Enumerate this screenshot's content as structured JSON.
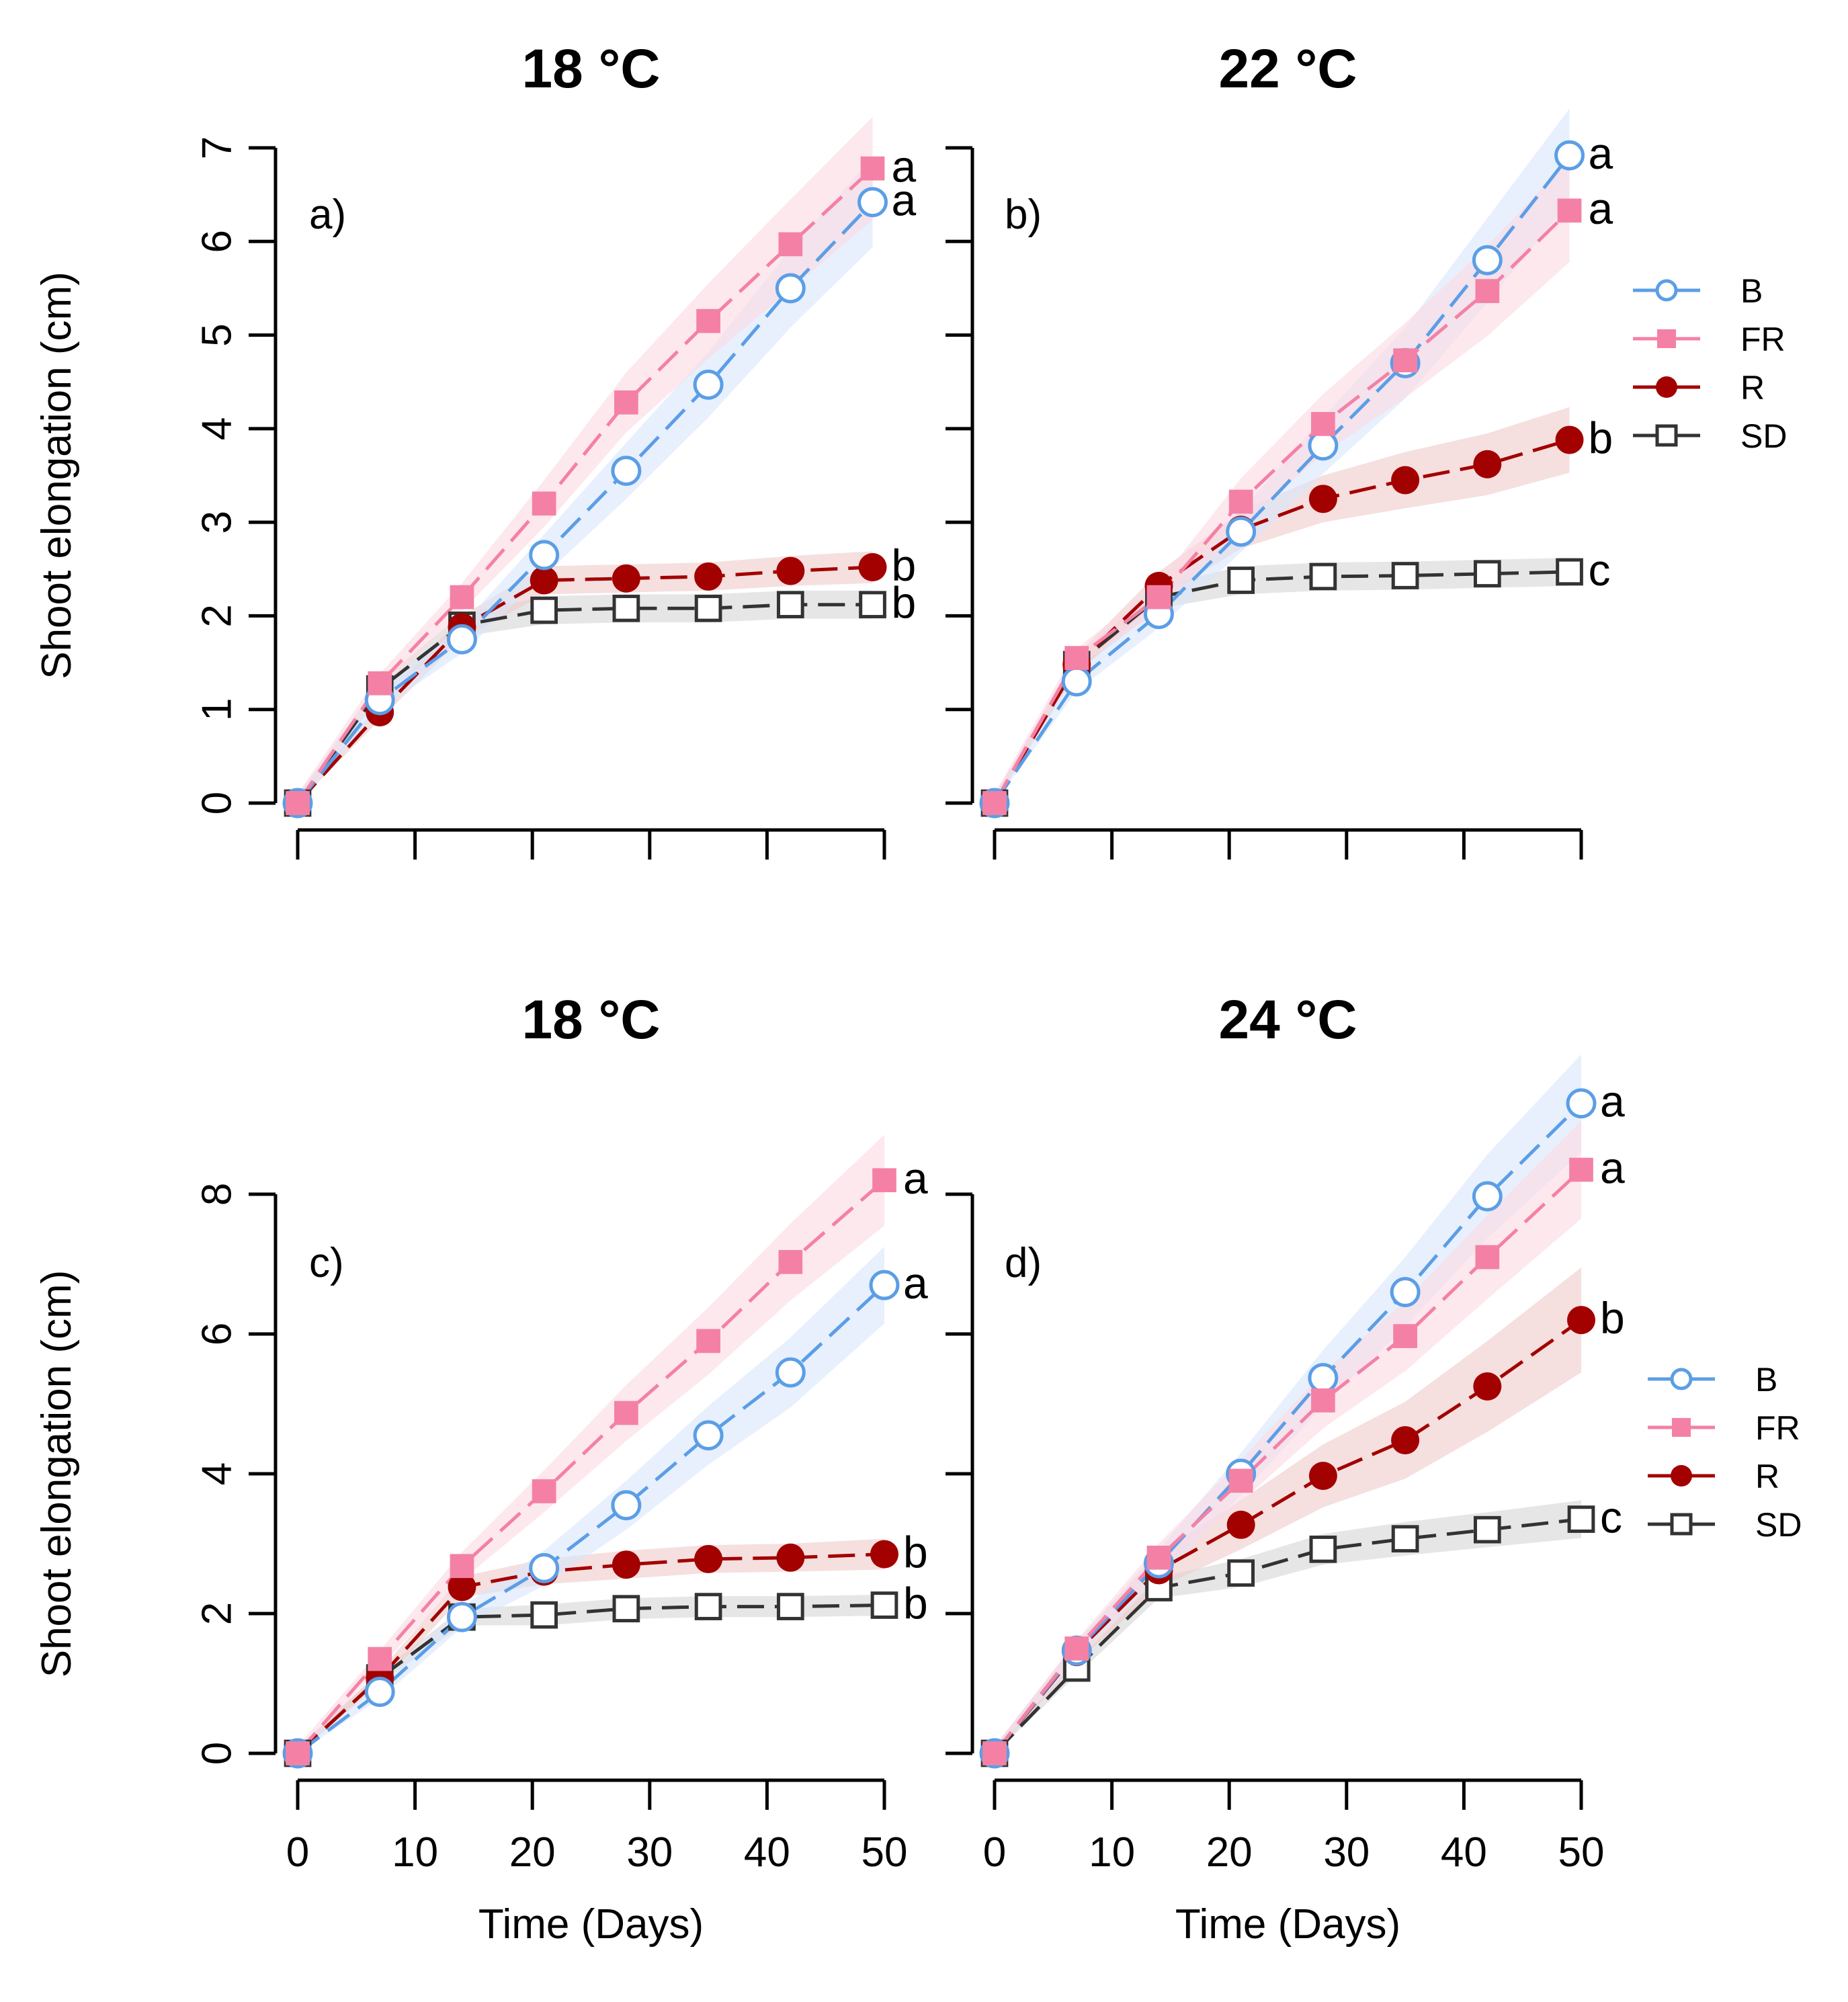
{
  "colors": {
    "B": "#5b9ee6",
    "FR": "#f481a5",
    "R": "#a30000",
    "SD": "#333333",
    "B_band": "#d8e6fb",
    "FR_band": "#fbd8e2",
    "R_band": "#efc9c9",
    "SD_band": "#d6d6d6"
  },
  "legend": {
    "entries": [
      {
        "key": "B",
        "label": "B"
      },
      {
        "key": "FR",
        "label": "FR"
      },
      {
        "key": "R",
        "label": "R"
      },
      {
        "key": "SD",
        "label": "SD"
      }
    ]
  },
  "chart_data": [
    {
      "type": "line",
      "panel": "a)",
      "title": "18 °C",
      "ylabel": "Shoot elongation (cm)",
      "xlabel": "",
      "xlim": [
        0,
        50
      ],
      "ylim": [
        0,
        7
      ],
      "xticks": [
        0,
        10,
        20,
        30,
        40,
        50
      ],
      "yticks": [
        0,
        1,
        2,
        3,
        4,
        5,
        6,
        7
      ],
      "show_xtick_labels": false,
      "show_ytick_labels": true,
      "show_legend": false,
      "x": [
        0,
        7,
        14,
        21,
        28,
        35,
        42,
        49
      ],
      "series": [
        {
          "name": "B",
          "values": [
            0,
            1.1,
            1.75,
            2.65,
            3.55,
            4.47,
            5.5,
            6.42
          ],
          "band": [
            0.1,
            0.1,
            0.15,
            0.22,
            0.3,
            0.35,
            0.42,
            0.48
          ],
          "letter": "a"
        },
        {
          "name": "FR",
          "values": [
            0,
            1.28,
            2.2,
            3.2,
            4.28,
            5.15,
            5.97,
            6.78
          ],
          "band": [
            0.1,
            0.1,
            0.15,
            0.25,
            0.32,
            0.4,
            0.48,
            0.55
          ],
          "letter": "a"
        },
        {
          "name": "R",
          "values": [
            0,
            0.97,
            1.88,
            2.38,
            2.4,
            2.42,
            2.48,
            2.52
          ],
          "band": [
            0.08,
            0.08,
            0.12,
            0.15,
            0.15,
            0.15,
            0.16,
            0.17
          ],
          "letter": "b"
        },
        {
          "name": "SD",
          "values": [
            0,
            1.22,
            1.9,
            2.06,
            2.08,
            2.08,
            2.12,
            2.12
          ],
          "band": [
            0.08,
            0.08,
            0.12,
            0.15,
            0.15,
            0.15,
            0.15,
            0.15
          ],
          "letter": "b"
        }
      ]
    },
    {
      "type": "line",
      "panel": "b)",
      "title": "22 °C",
      "ylabel": "",
      "xlabel": "",
      "xlim": [
        0,
        50
      ],
      "ylim": [
        0,
        7
      ],
      "xticks": [
        0,
        10,
        20,
        30,
        40,
        50
      ],
      "yticks": [
        0,
        1,
        2,
        3,
        4,
        5,
        6,
        7
      ],
      "show_xtick_labels": false,
      "show_ytick_labels": false,
      "show_legend": true,
      "x": [
        0,
        7,
        14,
        21,
        28,
        35,
        42,
        49
      ],
      "series": [
        {
          "name": "B",
          "values": [
            0,
            1.3,
            2.02,
            2.9,
            3.82,
            4.7,
            5.8,
            6.92
          ],
          "band": [
            0.1,
            0.1,
            0.15,
            0.22,
            0.3,
            0.38,
            0.45,
            0.5
          ],
          "letter": "a"
        },
        {
          "name": "FR",
          "values": [
            0,
            1.55,
            2.2,
            3.22,
            4.05,
            4.73,
            5.47,
            6.33
          ],
          "band": [
            0.1,
            0.1,
            0.15,
            0.25,
            0.32,
            0.4,
            0.48,
            0.55
          ],
          "letter": "a"
        },
        {
          "name": "R",
          "values": [
            0,
            1.48,
            2.32,
            2.92,
            3.25,
            3.45,
            3.62,
            3.88
          ],
          "band": [
            0.08,
            0.1,
            0.15,
            0.2,
            0.25,
            0.3,
            0.33,
            0.35
          ],
          "letter": "b"
        },
        {
          "name": "SD",
          "values": [
            0,
            1.48,
            2.2,
            2.38,
            2.42,
            2.43,
            2.45,
            2.47
          ],
          "band": [
            0.08,
            0.08,
            0.12,
            0.15,
            0.15,
            0.15,
            0.15,
            0.15
          ],
          "letter": "c"
        }
      ]
    },
    {
      "type": "line",
      "panel": "c)",
      "title": "18 °C",
      "ylabel": "Shoot elongation (cm)",
      "xlabel": "Time (Days)",
      "xlim": [
        0,
        50
      ],
      "ylim": [
        0,
        8
      ],
      "xticks": [
        0,
        10,
        20,
        30,
        40,
        50
      ],
      "yticks": [
        0,
        2,
        4,
        6,
        8
      ],
      "show_xtick_labels": true,
      "show_ytick_labels": true,
      "show_legend": false,
      "x": [
        0,
        7,
        14,
        21,
        28,
        35,
        42,
        50
      ],
      "series": [
        {
          "name": "B",
          "values": [
            0,
            0.88,
            1.95,
            2.65,
            3.55,
            4.55,
            5.45,
            6.7
          ],
          "band": [
            0.1,
            0.1,
            0.15,
            0.25,
            0.35,
            0.42,
            0.5,
            0.55
          ],
          "letter": "a"
        },
        {
          "name": "FR",
          "values": [
            0,
            1.35,
            2.68,
            3.75,
            4.87,
            5.9,
            7.03,
            8.2
          ],
          "band": [
            0.1,
            0.12,
            0.2,
            0.3,
            0.4,
            0.48,
            0.55,
            0.65
          ],
          "letter": "a"
        },
        {
          "name": "R",
          "values": [
            0,
            1.08,
            2.38,
            2.6,
            2.7,
            2.78,
            2.8,
            2.85
          ],
          "band": [
            0.08,
            0.1,
            0.15,
            0.18,
            0.2,
            0.2,
            0.2,
            0.22
          ],
          "letter": "b"
        },
        {
          "name": "SD",
          "values": [
            0,
            1.08,
            1.95,
            1.98,
            2.07,
            2.1,
            2.1,
            2.12
          ],
          "band": [
            0.08,
            0.08,
            0.12,
            0.15,
            0.15,
            0.15,
            0.15,
            0.15
          ],
          "letter": "b"
        }
      ]
    },
    {
      "type": "line",
      "panel": "d)",
      "title": "24 °C",
      "ylabel": "",
      "xlabel": "Time (Days)",
      "xlim": [
        0,
        50
      ],
      "ylim": [
        0,
        8
      ],
      "xticks": [
        0,
        10,
        20,
        30,
        40,
        50
      ],
      "yticks": [
        0,
        2,
        4,
        6,
        8
      ],
      "show_xtick_labels": true,
      "show_ytick_labels": false,
      "show_legend": true,
      "x": [
        0,
        7,
        14,
        21,
        28,
        35,
        42,
        50
      ],
      "series": [
        {
          "name": "B",
          "values": [
            0,
            1.47,
            2.72,
            4.0,
            5.37,
            6.6,
            7.97,
            9.3
          ],
          "band": [
            0.1,
            0.12,
            0.2,
            0.3,
            0.4,
            0.5,
            0.6,
            0.7
          ],
          "letter": "a"
        },
        {
          "name": "FR",
          "values": [
            0,
            1.5,
            2.8,
            3.9,
            5.05,
            5.97,
            7.1,
            8.35
          ],
          "band": [
            0.1,
            0.12,
            0.2,
            0.3,
            0.4,
            0.5,
            0.6,
            0.7
          ],
          "letter": "a"
        },
        {
          "name": "R",
          "values": [
            0,
            1.45,
            2.62,
            3.27,
            3.97,
            4.48,
            5.25,
            6.2
          ],
          "band": [
            0.1,
            0.15,
            0.25,
            0.35,
            0.45,
            0.55,
            0.65,
            0.75
          ],
          "letter": "b"
        },
        {
          "name": "SD",
          "values": [
            0,
            1.22,
            2.37,
            2.58,
            2.92,
            3.07,
            3.2,
            3.35
          ],
          "band": [
            0.08,
            0.1,
            0.15,
            0.2,
            0.22,
            0.24,
            0.25,
            0.27
          ],
          "letter": "c"
        }
      ]
    }
  ]
}
